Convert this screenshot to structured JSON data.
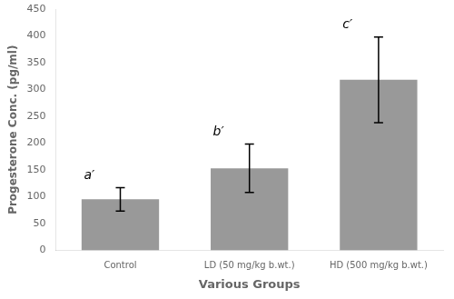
{
  "chart_data": {
    "type": "bar",
    "categories": [
      "Control",
      "LD (50 mg/kg b.wt.)",
      "HD (500 mg/kg b.wt.)"
    ],
    "values": [
      95,
      153,
      318
    ],
    "errors": [
      22,
      45,
      80
    ],
    "color": "#999999",
    "xlabel": "Various Groups",
    "ylabel": "Progesterone Conc. (pg/ml)",
    "annotations": [
      "a′",
      "b′",
      "c′"
    ],
    "ylim": [
      0,
      450
    ],
    "yticks": [
      0,
      50,
      100,
      150,
      200,
      250,
      300,
      350,
      400,
      450
    ],
    "grid": false
  }
}
